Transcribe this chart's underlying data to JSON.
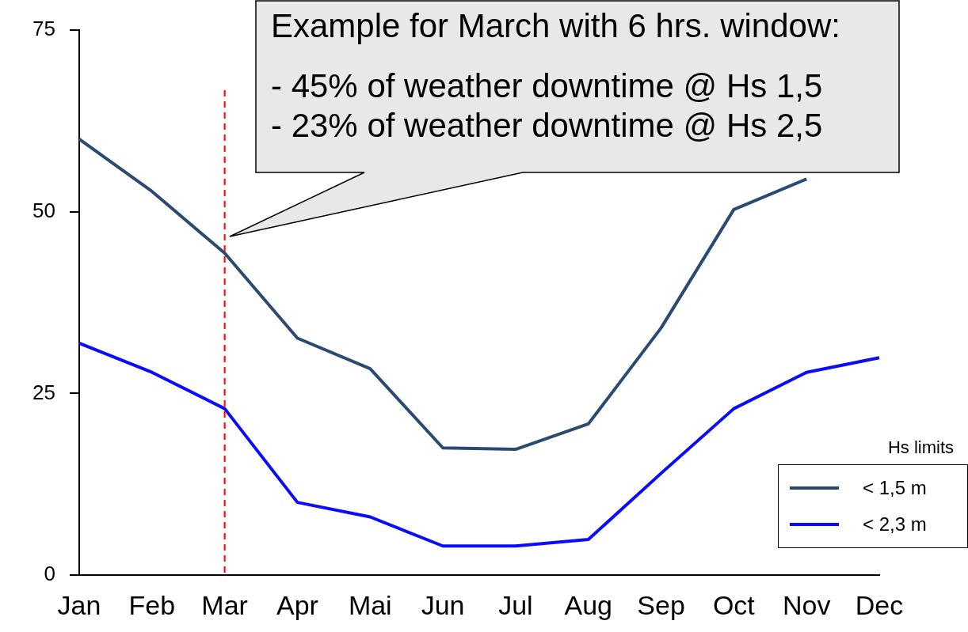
{
  "chart_data": {
    "type": "line",
    "categories": [
      "Jan",
      "Feb",
      "Mar",
      "Apr",
      "Mai",
      "Jun",
      "Jul",
      "Aug",
      "Sep",
      "Oct",
      "Nov",
      "Dec"
    ],
    "series": [
      {
        "name": "< 1,5 m",
        "color": "#2a4a74",
        "values": [
          60,
          52.8,
          44.3,
          32.6,
          28.4,
          17.5,
          17.3,
          20.8,
          34,
          50.3,
          54.5,
          null
        ]
      },
      {
        "name": "< 2,3 m",
        "color": "#0a0aff",
        "values": [
          31.9,
          27.9,
          22.9,
          10,
          8,
          4,
          4,
          4.9,
          14,
          22.9,
          27.9,
          29.9
        ]
      }
    ],
    "ylim": [
      0,
      75
    ],
    "yticks": [
      0,
      25,
      50,
      75
    ],
    "grid": false,
    "legend": "bottom right",
    "legend_title": "Hs limits",
    "marker": "none",
    "line_style": "solid",
    "ref_lines": [
      {
        "axis": "x",
        "value": "Mar",
        "color": "#ff0000",
        "line_style": "dashed"
      }
    ],
    "annotations": [
      "Example for March with 6 hrs. window:\n- 45% of weather downtime @ Hs 1,5\n- 23% of weather downtime @ Hs 2,5"
    ]
  }
}
